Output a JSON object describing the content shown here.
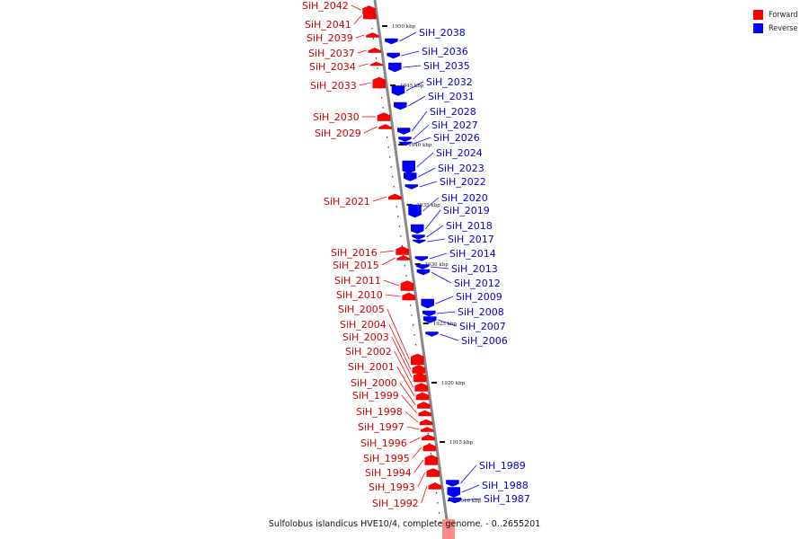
{
  "caption": "Sulfolobus islandicus HVE10/4, complete genome. - 0..2655201",
  "legend": {
    "forward_label": "Forward",
    "forward_color": "#ff0000",
    "reverse_label": "Reverse",
    "reverse_color": "#0000ff"
  },
  "scale_labels": [
    "1950 kbp",
    "1945 kbp",
    "1940 kbp",
    "1935 kbp",
    "1930 kbp",
    "1925 kbp",
    "1920 kbp",
    "1915 kbp",
    "1910 kbp"
  ],
  "forward_genes": [
    "SiH_2042",
    "SiH_2041",
    "SiH_2039",
    "SiH_2037",
    "SiH_2034",
    "SiH_2033",
    "SiH_2030",
    "SiH_2029",
    "SiH_2021",
    "SiH_2016",
    "SiH_2015",
    "SiH_2011",
    "SiH_2010",
    "SiH_2005",
    "SiH_2004",
    "SiH_2003",
    "SiH_2002",
    "SiH_2001",
    "SiH_2000",
    "SiH_1999",
    "SiH_1998",
    "SiH_1997",
    "SiH_1996",
    "SiH_1995",
    "SiH_1994",
    "SiH_1993",
    "SiH_1992"
  ],
  "reverse_genes": [
    "SiH_2038",
    "SiH_2036",
    "SiH_2035",
    "SiH_2032",
    "SiH_2031",
    "SiH_2028",
    "SiH_2027",
    "SiH_2026",
    "SiH_2024",
    "SiH_2023",
    "SiH_2022",
    "SiH_2020",
    "SiH_2019",
    "SiH_2018",
    "SiH_2017",
    "SiH_2014",
    "SiH_2013",
    "SiH_2012",
    "SiH_2009",
    "SiH_2008",
    "SiH_2007",
    "SiH_2006",
    "SiH_1989",
    "SiH_1988",
    "SiH_1987"
  ]
}
